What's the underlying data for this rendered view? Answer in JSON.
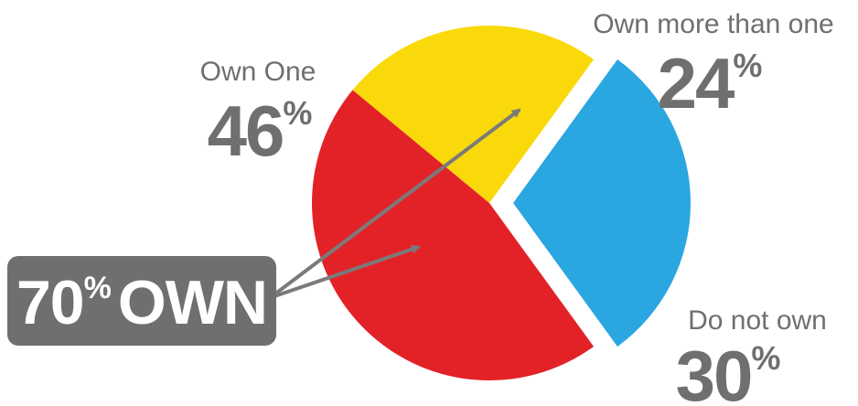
{
  "colors": {
    "own_one": "#e32228",
    "own_more": "#fad90b",
    "do_not_own": "#2aa6e0",
    "text_gray": "#6f6f6f",
    "callout_bg": "#6f6f6f",
    "arrow": "#7a7a7a"
  },
  "callout": {
    "number": "70",
    "suffix": "OWN"
  },
  "chart_data": {
    "type": "pie",
    "title": "",
    "slices": [
      {
        "label": "Own One",
        "value": 46,
        "display": "46",
        "color": "#e32228",
        "exploded": false
      },
      {
        "label": "Own more than one",
        "value": 24,
        "display": "24",
        "color": "#fad90b",
        "exploded": false
      },
      {
        "label": "Do not own",
        "value": 30,
        "display": "30",
        "color": "#2aa6e0",
        "exploded": true
      }
    ],
    "percent_sign": "%",
    "legend": "none"
  }
}
